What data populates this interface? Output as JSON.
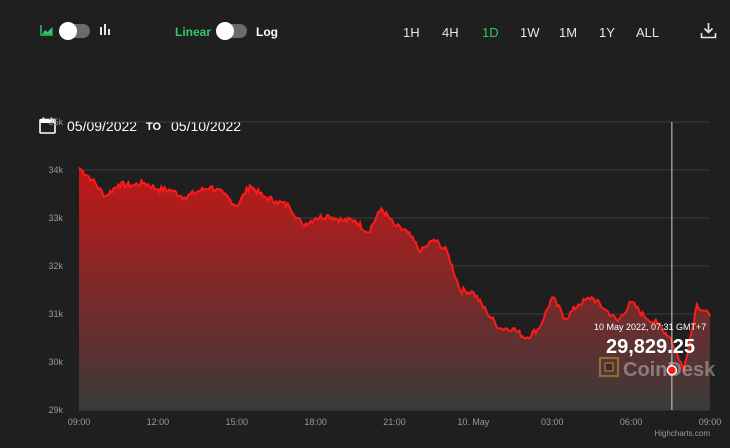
{
  "toolbar": {
    "chart_type_toggle": {
      "area_icon": "area-chart-icon",
      "bar_icon": "bar-chart-icon",
      "on": false
    },
    "scale_toggle": {
      "linear_label": "Linear",
      "log_label": "Log",
      "log_on": false
    },
    "ranges": [
      "1H",
      "4H",
      "1D",
      "1W",
      "1M",
      "1Y",
      "ALL"
    ],
    "active_range": "1D",
    "download_icon": "download-icon"
  },
  "date_range": {
    "calendar_icon": "calendar-icon",
    "from": "05/09/2022",
    "to_label": "TO",
    "to": "05/10/2022"
  },
  "colors": {
    "background": "#1f1f1f",
    "line": "#ff1a1a",
    "fill_top": "#c21818",
    "accent_green": "#2fc86a"
  },
  "tooltip": {
    "date": "10 May 2022, 07:31 GMT+7",
    "value": "29,829.25"
  },
  "watermark": "CoinDesk",
  "credit": "Highcharts.com",
  "chart_data": {
    "type": "area",
    "title": "",
    "xlabel": "",
    "ylabel": "",
    "ylim": [
      29000,
      35000
    ],
    "y_ticks": [
      "29k",
      "30k",
      "31k",
      "32k",
      "33k",
      "34k",
      "35k"
    ],
    "x_ticks": [
      "09:00",
      "12:00",
      "15:00",
      "18:00",
      "21:00",
      "10. May",
      "03:00",
      "06:00",
      "09:00"
    ],
    "x_hours": [
      0,
      0.5,
      1,
      1.5,
      2,
      2.5,
      3,
      3.5,
      4,
      4.5,
      5,
      5.5,
      6,
      6.5,
      7,
      7.5,
      8,
      8.5,
      9,
      9.5,
      10,
      10.5,
      11,
      11.5,
      12,
      12.5,
      13,
      13.5,
      14,
      14.5,
      15,
      15.5,
      16,
      16.5,
      17,
      17.5,
      18,
      18.5,
      19,
      19.5,
      20,
      20.5,
      21,
      21.5,
      22,
      22.5,
      23,
      23.5,
      24
    ],
    "values": [
      34050,
      33800,
      33450,
      33700,
      33680,
      33730,
      33600,
      33580,
      33430,
      33550,
      33650,
      33500,
      33250,
      33680,
      33450,
      33350,
      33250,
      32850,
      33000,
      33050,
      32950,
      32950,
      32700,
      33200,
      32850,
      32700,
      32300,
      32550,
      32300,
      31500,
      31450,
      31050,
      30700,
      30700,
      30500,
      30700,
      31350,
      30900,
      31200,
      31350,
      31100,
      30850,
      31250,
      30950,
      30800,
      30500,
      29829,
      31200,
      30950
    ],
    "highlight": {
      "x_hour": 22.55,
      "value": 29829.25
    },
    "grid": true,
    "legend": "none"
  }
}
